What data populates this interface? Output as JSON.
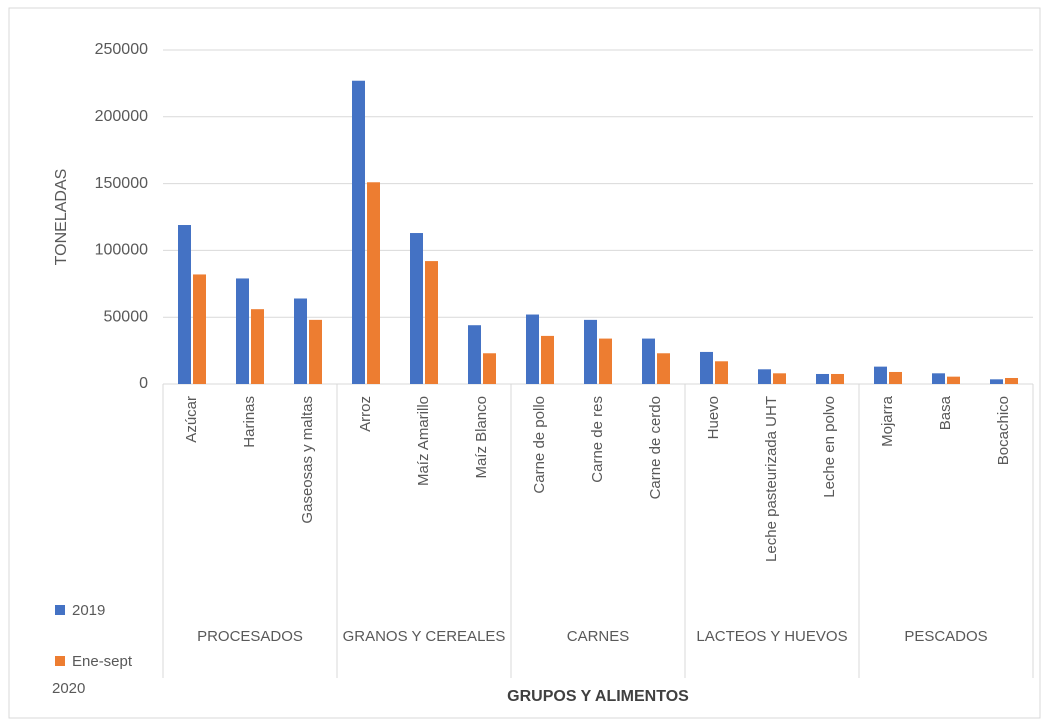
{
  "chart_data": {
    "type": "bar",
    "y_label": "TONELADAS",
    "x_label": "GRUPOS Y ALIMENTOS",
    "groups": [
      "PROCESADOS",
      "GRANOS Y CEREALES",
      "CARNES",
      "LACTEOS Y HUEVOS",
      "PESCADOS"
    ],
    "categories": [
      "Azúcar",
      "Harinas",
      "Gaseosas y maltas",
      "Arroz",
      "Maíz Amarillo",
      "Maíz Blanco",
      "Carne de pollo",
      "Carne de res",
      "Carne de cerdo",
      "Huevo",
      "Leche pasteurizada UHT",
      "Leche en polvo",
      "Mojarra",
      "Basa",
      "Bocachico"
    ],
    "series": [
      {
        "name": "2019",
        "color": "#4472c4",
        "values": [
          119000,
          79000,
          64000,
          227000,
          113000,
          44000,
          52000,
          48000,
          34000,
          24000,
          11000,
          7500,
          13000,
          8000,
          3500
        ]
      },
      {
        "name": "Ene-sept 2020",
        "color": "#ed7d31",
        "values": [
          82000,
          56000,
          48000,
          151000,
          92000,
          23000,
          36000,
          34000,
          23000,
          17000,
          8000,
          7500,
          9000,
          5500,
          4500
        ]
      }
    ],
    "ylim": [
      0,
      250000
    ],
    "yticks": [
      0,
      50000,
      100000,
      150000,
      200000,
      250000
    ],
    "grid": true
  }
}
